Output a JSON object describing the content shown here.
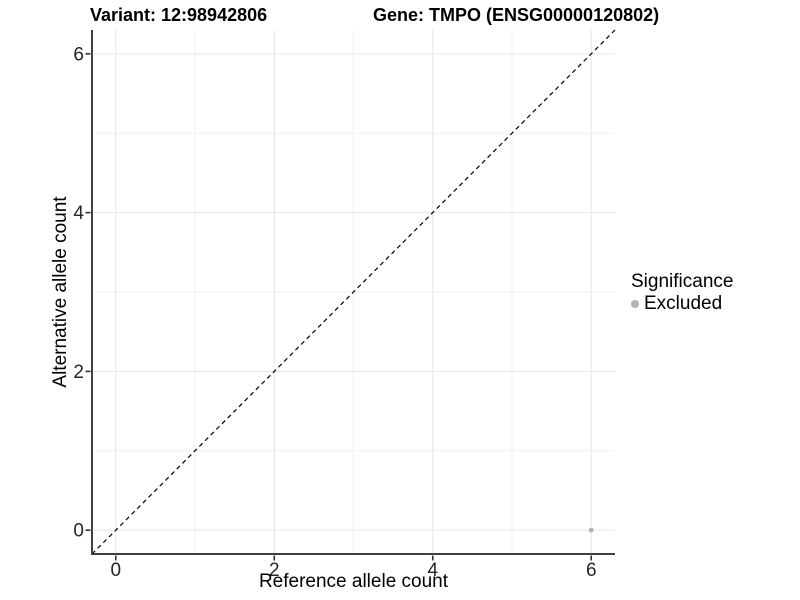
{
  "chart_data": {
    "type": "scatter",
    "titles": {
      "left": "Variant: 12:98942806",
      "right": "Gene: TMPO (ENSG00000120802)"
    },
    "xlabel": "Reference allele count",
    "ylabel": "Alternative allele count",
    "xlim": [
      -0.3,
      6.3
    ],
    "ylim": [
      -0.3,
      6.3
    ],
    "x_ticks": [
      0,
      2,
      4,
      6
    ],
    "y_ticks": [
      0,
      2,
      4,
      6
    ],
    "x_minor_ticks": [
      1,
      3,
      5
    ],
    "y_minor_ticks": [
      1,
      3,
      5
    ],
    "grid": "major and minor gridlines on white panel",
    "legend": {
      "title": "Significance",
      "position": "right",
      "items": [
        {
          "label": "Excluded",
          "color": "#b3b3b3"
        }
      ]
    },
    "series": [
      {
        "name": "Excluded",
        "color": "#b3b3b3",
        "point_radius": 2.4,
        "points": [
          {
            "x": 6,
            "y": 0
          }
        ]
      }
    ],
    "reference_line": {
      "kind": "identity y=x",
      "style": "dashed",
      "color": "#000000"
    },
    "style_colors": {
      "grid_major": "#e6e6e6",
      "grid_minor": "#f2f2f2",
      "axis_line": "#404040",
      "tick_mark": "#333333",
      "tick_label": "#262626",
      "text": "#000000",
      "background": "#ffffff"
    }
  }
}
